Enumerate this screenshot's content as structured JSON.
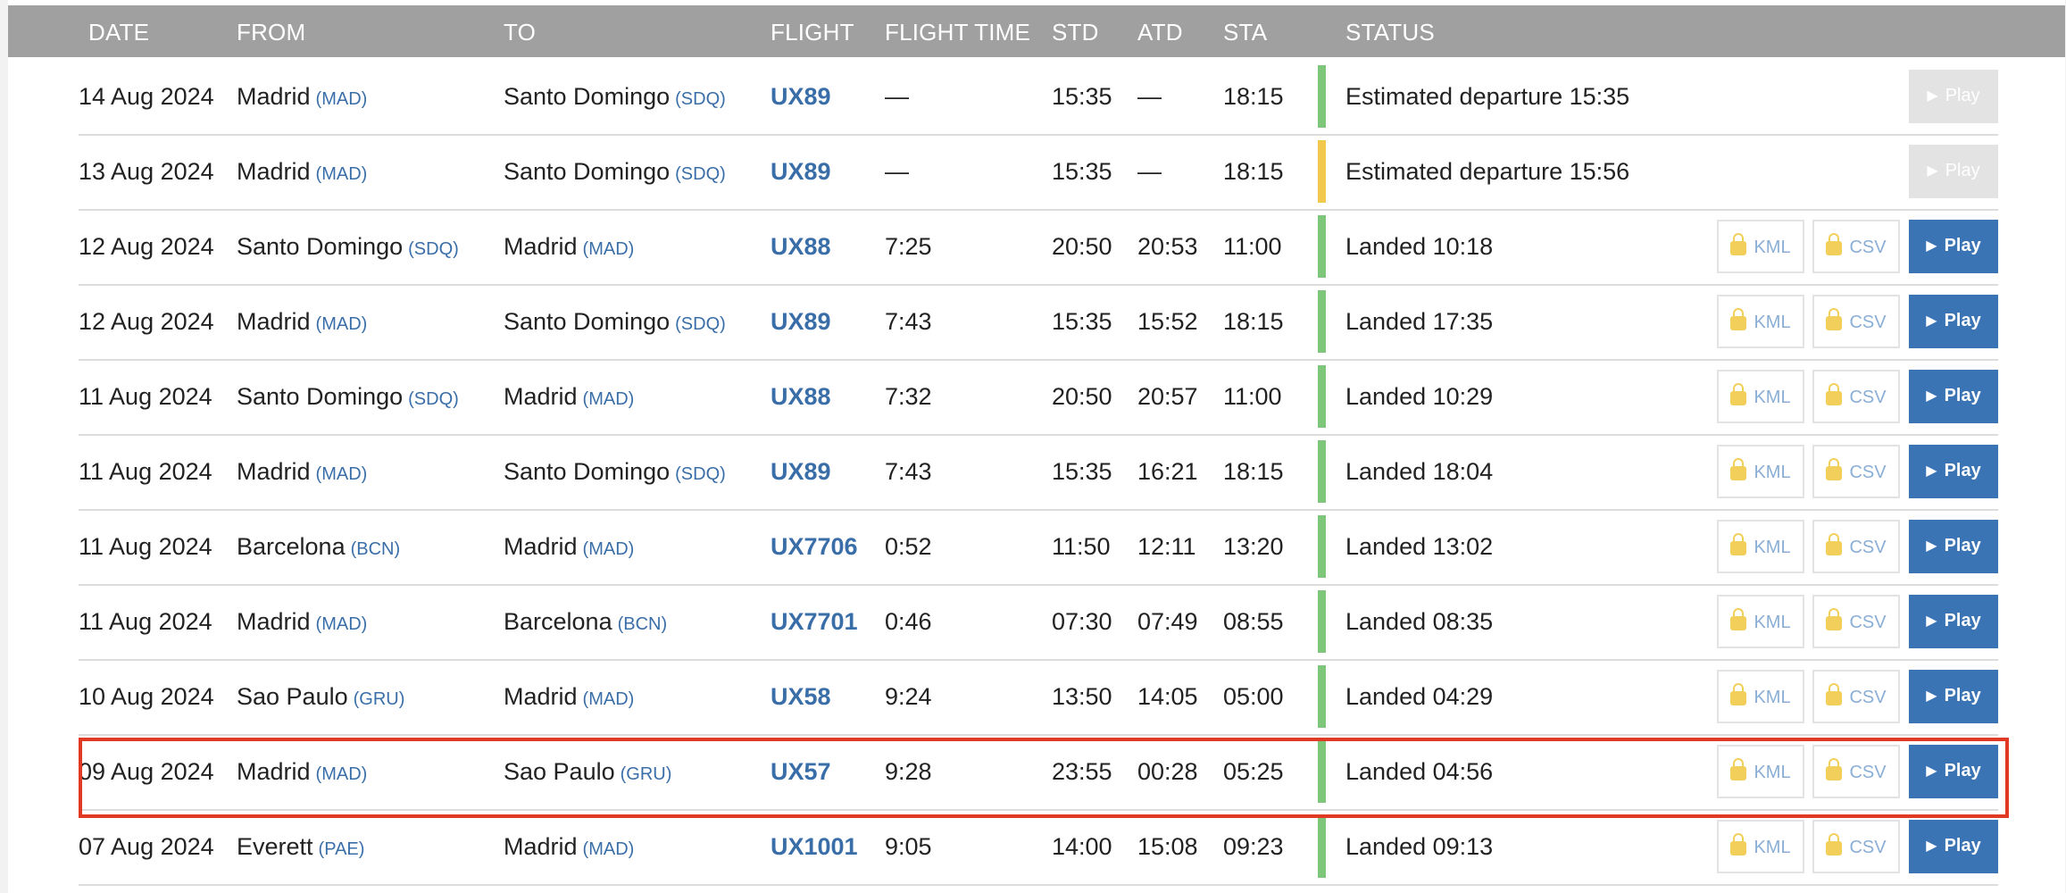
{
  "columns": {
    "date": "DATE",
    "from": "FROM",
    "to": "TO",
    "flight": "FLIGHT",
    "flight_time": "FLIGHT TIME",
    "std": "STD",
    "atd": "ATD",
    "sta": "STA",
    "status": "STATUS"
  },
  "buttons": {
    "kml": "KML",
    "csv": "CSV",
    "play": "Play"
  },
  "colors": {
    "green": "#7dc67a",
    "yellow": "#f2c94c",
    "highlight": "#e03a24"
  },
  "rows": [
    {
      "date": "14 Aug 2024",
      "from_city": "Madrid",
      "from_code": "(MAD)",
      "to_city": "Santo Domingo",
      "to_code": "(SDQ)",
      "flight": "UX89",
      "flight_time": "—",
      "std": "15:35",
      "atd": "—",
      "sta": "18:15",
      "status": "Estimated departure 15:35",
      "indicator": "green",
      "has_files": false,
      "play_enabled": false
    },
    {
      "date": "13 Aug 2024",
      "from_city": "Madrid",
      "from_code": "(MAD)",
      "to_city": "Santo Domingo",
      "to_code": "(SDQ)",
      "flight": "UX89",
      "flight_time": "—",
      "std": "15:35",
      "atd": "—",
      "sta": "18:15",
      "status": "Estimated departure 15:56",
      "indicator": "yellow",
      "has_files": false,
      "play_enabled": false
    },
    {
      "date": "12 Aug 2024",
      "from_city": "Santo Domingo",
      "from_code": "(SDQ)",
      "to_city": "Madrid",
      "to_code": "(MAD)",
      "flight": "UX88",
      "flight_time": "7:25",
      "std": "20:50",
      "atd": "20:53",
      "sta": "11:00",
      "status": "Landed 10:18",
      "indicator": "green",
      "has_files": true,
      "play_enabled": true
    },
    {
      "date": "12 Aug 2024",
      "from_city": "Madrid",
      "from_code": "(MAD)",
      "to_city": "Santo Domingo",
      "to_code": "(SDQ)",
      "flight": "UX89",
      "flight_time": "7:43",
      "std": "15:35",
      "atd": "15:52",
      "sta": "18:15",
      "status": "Landed 17:35",
      "indicator": "green",
      "has_files": true,
      "play_enabled": true
    },
    {
      "date": "11 Aug 2024",
      "from_city": "Santo Domingo",
      "from_code": "(SDQ)",
      "to_city": "Madrid",
      "to_code": "(MAD)",
      "flight": "UX88",
      "flight_time": "7:32",
      "std": "20:50",
      "atd": "20:57",
      "sta": "11:00",
      "status": "Landed 10:29",
      "indicator": "green",
      "has_files": true,
      "play_enabled": true
    },
    {
      "date": "11 Aug 2024",
      "from_city": "Madrid",
      "from_code": "(MAD)",
      "to_city": "Santo Domingo",
      "to_code": "(SDQ)",
      "flight": "UX89",
      "flight_time": "7:43",
      "std": "15:35",
      "atd": "16:21",
      "sta": "18:15",
      "status": "Landed 18:04",
      "indicator": "green",
      "has_files": true,
      "play_enabled": true
    },
    {
      "date": "11 Aug 2024",
      "from_city": "Barcelona",
      "from_code": "(BCN)",
      "to_city": "Madrid",
      "to_code": "(MAD)",
      "flight": "UX7706",
      "flight_time": "0:52",
      "std": "11:50",
      "atd": "12:11",
      "sta": "13:20",
      "status": "Landed 13:02",
      "indicator": "green",
      "has_files": true,
      "play_enabled": true
    },
    {
      "date": "11 Aug 2024",
      "from_city": "Madrid",
      "from_code": "(MAD)",
      "to_city": "Barcelona",
      "to_code": "(BCN)",
      "flight": "UX7701",
      "flight_time": "0:46",
      "std": "07:30",
      "atd": "07:49",
      "sta": "08:55",
      "status": "Landed 08:35",
      "indicator": "green",
      "has_files": true,
      "play_enabled": true
    },
    {
      "date": "10 Aug 2024",
      "from_city": "Sao Paulo",
      "from_code": "(GRU)",
      "to_city": "Madrid",
      "to_code": "(MAD)",
      "flight": "UX58",
      "flight_time": "9:24",
      "std": "13:50",
      "atd": "14:05",
      "sta": "05:00",
      "status": "Landed 04:29",
      "indicator": "green",
      "has_files": true,
      "play_enabled": true
    },
    {
      "date": "09 Aug 2024",
      "from_city": "Madrid",
      "from_code": "(MAD)",
      "to_city": "Sao Paulo",
      "to_code": "(GRU)",
      "flight": "UX57",
      "flight_time": "9:28",
      "std": "23:55",
      "atd": "00:28",
      "sta": "05:25",
      "status": "Landed 04:56",
      "indicator": "green",
      "has_files": true,
      "play_enabled": true,
      "highlighted": true
    },
    {
      "date": "07 Aug 2024",
      "from_city": "Everett",
      "from_code": "(PAE)",
      "to_city": "Madrid",
      "to_code": "(MAD)",
      "flight": "UX1001",
      "flight_time": "9:05",
      "std": "14:00",
      "atd": "15:08",
      "sta": "09:23",
      "status": "Landed 09:13",
      "indicator": "green",
      "has_files": true,
      "play_enabled": true
    }
  ]
}
